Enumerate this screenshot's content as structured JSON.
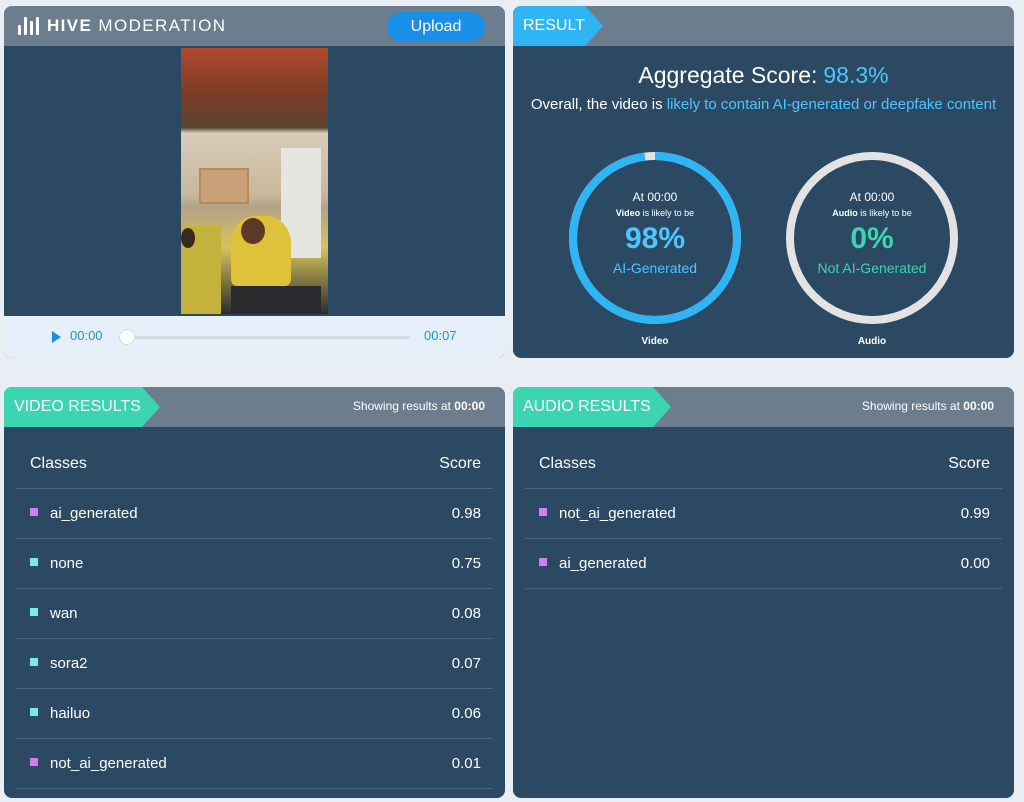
{
  "brand": {
    "name_bold": "HIVE",
    "name_rest": "MODERATION"
  },
  "player": {
    "upload_label": "Upload",
    "current_time": "00:00",
    "total_time": "00:07",
    "progress": 0
  },
  "result": {
    "tag": "RESULT",
    "aggregate_label": "Aggregate Score:",
    "aggregate_value": "98.3%",
    "desc_prefix": "Overall, the video is",
    "desc_highlight": "likely to contain AI-generated or deepfake content",
    "gauges": [
      {
        "at": "At 00:00",
        "subject": "Video",
        "sub_rest": "is likely to be",
        "pct": "98%",
        "value": 0.98,
        "label": "AI-Generated",
        "caption": "Video",
        "color": "#2fb5f3",
        "text_color": "#4cc6ff"
      },
      {
        "at": "At 00:00",
        "subject": "Audio",
        "sub_rest": "is likely to be",
        "pct": "0%",
        "value": 0,
        "label": "Not AI-Generated",
        "caption": "Audio",
        "color": "#e3e3e3",
        "text_color": "#3bd6b1"
      }
    ]
  },
  "video_results": {
    "tag": "VIDEO RESULTS",
    "showing_prefix": "Showing results at",
    "showing_time": "00:00",
    "col_classes": "Classes",
    "col_score": "Score",
    "rows": [
      {
        "cls": "ai_generated",
        "score": "0.98",
        "color": "#d57cf0"
      },
      {
        "cls": "none",
        "score": "0.75",
        "color": "#7ee8f0"
      },
      {
        "cls": "wan",
        "score": "0.08",
        "color": "#7ee8f0"
      },
      {
        "cls": "sora2",
        "score": "0.07",
        "color": "#7ee8f0"
      },
      {
        "cls": "hailuo",
        "score": "0.06",
        "color": "#7ee8f0"
      },
      {
        "cls": "not_ai_generated",
        "score": "0.01",
        "color": "#d57cf0"
      }
    ]
  },
  "audio_results": {
    "tag": "AUDIO RESULTS",
    "showing_prefix": "Showing results at",
    "showing_time": "00:00",
    "col_classes": "Classes",
    "col_score": "Score",
    "rows": [
      {
        "cls": "not_ai_generated",
        "score": "0.99",
        "color": "#d57cf0"
      },
      {
        "cls": "ai_generated",
        "score": "0.00",
        "color": "#d57cf0"
      }
    ]
  }
}
